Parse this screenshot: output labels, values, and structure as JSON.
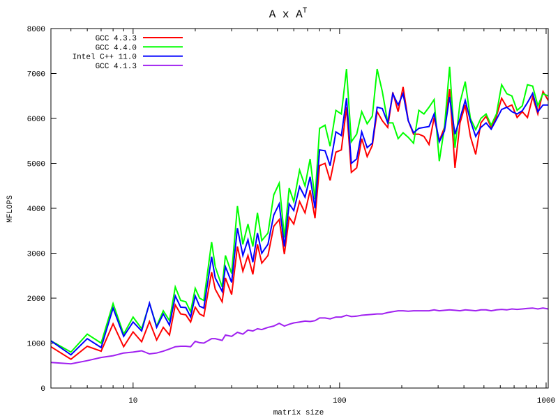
{
  "chart_data": {
    "type": "line",
    "title": "A x A",
    "title_superscript": "T",
    "xlabel": "matrix size",
    "ylabel": "MFLOPS",
    "xscale": "log",
    "xlim": [
      4,
      1024
    ],
    "ylim": [
      0,
      8000
    ],
    "grid": false,
    "legend_position": "top-left",
    "xticks": [
      10,
      100,
      1000
    ],
    "xtick_labels": [
      "10",
      "100",
      "1000"
    ],
    "yticks": [
      0,
      1000,
      2000,
      3000,
      4000,
      5000,
      6000,
      7000,
      8000
    ],
    "ytick_labels": [
      "0",
      "1000",
      "2000",
      "3000",
      "4000",
      "5000",
      "6000",
      "7000",
      "8000"
    ],
    "x": [
      4,
      5,
      6,
      7,
      8,
      9,
      10,
      11,
      12,
      13,
      14,
      15,
      16,
      17,
      18,
      19,
      20,
      21,
      22,
      24,
      25,
      27,
      28,
      30,
      32,
      34,
      36,
      38,
      40,
      42,
      45,
      48,
      51,
      54,
      57,
      60,
      64,
      68,
      72,
      76,
      80,
      85,
      90,
      96,
      102,
      108,
      114,
      121,
      128,
      136,
      144,
      152,
      161,
      171,
      181,
      192,
      203,
      215,
      228,
      242,
      256,
      271,
      287,
      304,
      322,
      341,
      362,
      383,
      406,
      430,
      456,
      483,
      512,
      542,
      575,
      609,
      645,
      683,
      724,
      767,
      812,
      861,
      912,
      966,
      1024
    ],
    "series": [
      {
        "name": "GCC 4.3.3",
        "color": "#ff0000",
        "values": [
          920,
          640,
          930,
          820,
          1430,
          920,
          1250,
          1030,
          1480,
          1070,
          1350,
          1180,
          1850,
          1650,
          1630,
          1470,
          1800,
          1650,
          1600,
          2580,
          2200,
          1920,
          2450,
          2080,
          3150,
          2600,
          2950,
          2530,
          3200,
          2780,
          2950,
          3600,
          3750,
          2980,
          3800,
          3650,
          4150,
          3900,
          4400,
          3780,
          4950,
          5000,
          4620,
          5250,
          5300,
          6250,
          4800,
          4900,
          5550,
          5150,
          5400,
          6150,
          5950,
          5800,
          6580,
          6150,
          6700,
          5950,
          5650,
          5650,
          5600,
          5420,
          6020,
          5500,
          5800,
          6650,
          4900,
          5900,
          6300,
          5600,
          5200,
          5900,
          6050,
          5800,
          6050,
          6450,
          6250,
          6300,
          6020,
          6150,
          6020,
          6480,
          6100,
          6600,
          6400
        ]
      },
      {
        "name": "GCC 4.4.0",
        "color": "#00ff00",
        "values": [
          1050,
          800,
          1200,
          1000,
          1880,
          1200,
          1580,
          1320,
          1880,
          1380,
          1720,
          1500,
          2250,
          1950,
          1920,
          1700,
          2220,
          2000,
          1950,
          3250,
          2700,
          2250,
          2950,
          2550,
          4050,
          3200,
          3650,
          3150,
          3900,
          3280,
          3450,
          4300,
          4560,
          3350,
          4450,
          4150,
          4850,
          4500,
          5100,
          4200,
          5780,
          5850,
          5380,
          6180,
          6100,
          7100,
          5480,
          5650,
          6150,
          5880,
          6050,
          7100,
          6600,
          5900,
          5900,
          5550,
          5680,
          5580,
          5450,
          6180,
          6100,
          6250,
          6420,
          5050,
          5800,
          7150,
          5350,
          6350,
          6820,
          6000,
          5750,
          6000,
          6100,
          5850,
          6100,
          6750,
          6550,
          6500,
          6180,
          6280,
          6750,
          6720,
          6280,
          6550,
          6500
        ]
      },
      {
        "name": "Intel C++ 11.0",
        "color": "#0000ff",
        "values": [
          1050,
          740,
          1100,
          900,
          1780,
          1150,
          1470,
          1270,
          1890,
          1350,
          1650,
          1400,
          2050,
          1800,
          1790,
          1580,
          2050,
          1820,
          1780,
          2920,
          2450,
          2150,
          2700,
          2350,
          3560,
          2950,
          3300,
          2800,
          3450,
          3000,
          3200,
          3850,
          4100,
          3150,
          4100,
          3950,
          4480,
          4250,
          4700,
          4000,
          5300,
          5280,
          4950,
          5700,
          5620,
          6450,
          5000,
          5100,
          5700,
          5350,
          5450,
          6250,
          6220,
          5900,
          6550,
          6300,
          6550,
          5950,
          5680,
          5780,
          5800,
          5820,
          6100,
          5480,
          5720,
          6480,
          5650,
          6000,
          6400,
          5950,
          5600,
          5800,
          5900,
          5760,
          5980,
          6200,
          6250,
          6150,
          6100,
          6170,
          6350,
          6560,
          6150,
          6300,
          6300
        ]
      },
      {
        "name": "GCC 4.1.3",
        "color": "#a020f0",
        "values": [
          570,
          540,
          610,
          680,
          720,
          780,
          800,
          830,
          760,
          780,
          820,
          870,
          920,
          930,
          930,
          920,
          1040,
          1010,
          1000,
          1100,
          1100,
          1060,
          1180,
          1150,
          1240,
          1200,
          1290,
          1270,
          1320,
          1300,
          1350,
          1380,
          1440,
          1380,
          1420,
          1450,
          1470,
          1490,
          1480,
          1500,
          1560,
          1560,
          1540,
          1580,
          1580,
          1620,
          1590,
          1600,
          1620,
          1630,
          1640,
          1650,
          1650,
          1680,
          1700,
          1720,
          1720,
          1710,
          1720,
          1720,
          1720,
          1720,
          1740,
          1720,
          1730,
          1740,
          1730,
          1720,
          1740,
          1730,
          1720,
          1740,
          1740,
          1720,
          1740,
          1750,
          1740,
          1760,
          1750,
          1760,
          1770,
          1780,
          1760,
          1780,
          1760
        ]
      }
    ]
  }
}
